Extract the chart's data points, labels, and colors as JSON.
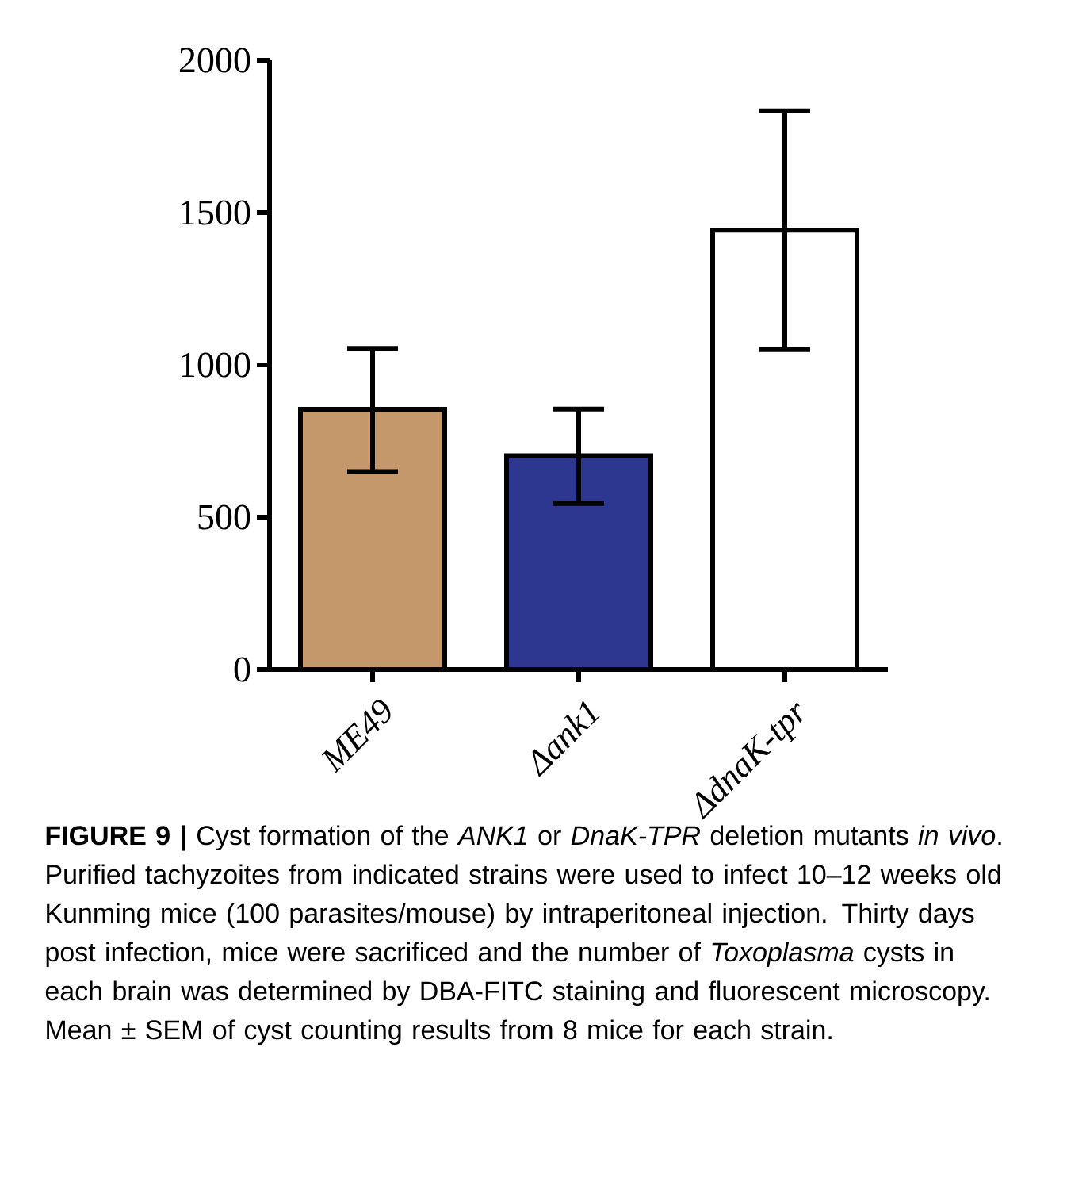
{
  "chart_data": {
    "type": "bar",
    "categories": [
      "ME49",
      "Δank1",
      "ΔdnaK-tpr"
    ],
    "values": [
      854,
      702,
      1442
    ],
    "colors": [
      "#c4986b",
      "#2e3790",
      "#ffffff"
    ],
    "errors": [
      [
        650,
        1054
      ],
      [
        545,
        855
      ],
      [
        1050,
        1834
      ]
    ],
    "ylim": [
      0,
      2000
    ],
    "yticks": [
      0,
      500,
      1000,
      1500,
      2000
    ],
    "annotations": [
      "**FIGURE 9 |** Cyst formation of the *ANK1* or *DnaK-TPR* deletion mutants *in vivo*. Purified tachyzoites from indicated strains were used to infect 10–12 weeks old Kunming mice (100 parasites/mouse) by intraperitoneal injection. Thirty days post infection, mice were sacrificed and the number of *Toxoplasma* cysts in each brain was determined by DBA-FITC staining and fluorescent microscopy. Mean ± SEM of cyst counting results from 8 mice for each strain."
    ]
  }
}
